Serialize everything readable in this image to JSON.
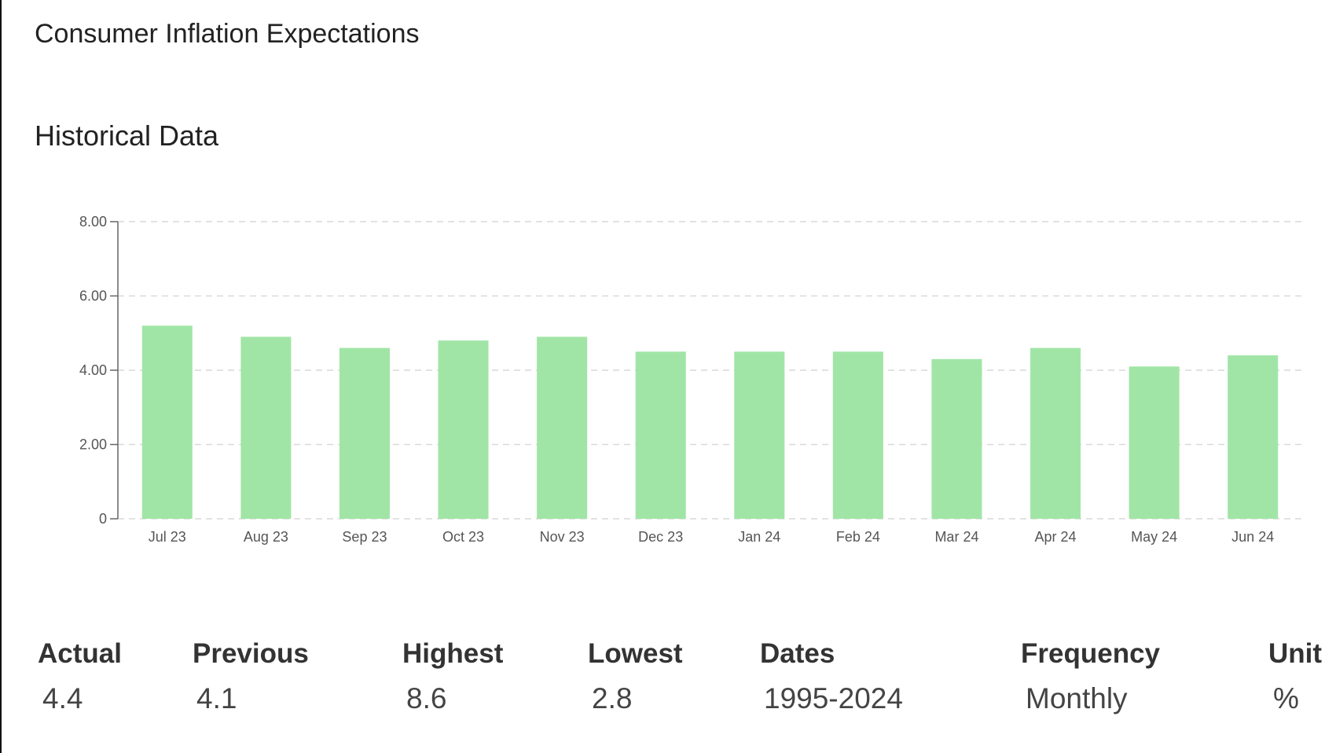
{
  "header": {
    "title": "Consumer Inflation Expectations",
    "subtitle": "Historical Data"
  },
  "colors": {
    "bar": "#a1e5a6",
    "grid": "#d9d9d9",
    "axis": "#666666"
  },
  "chart_data": {
    "type": "bar",
    "title": "",
    "xlabel": "",
    "ylabel": "",
    "categories": [
      "Jul 23",
      "Aug 23",
      "Sep 23",
      "Oct 23",
      "Nov 23",
      "Dec 23",
      "Jan 24",
      "Feb 24",
      "Mar 24",
      "Apr 24",
      "May 24",
      "Jun 24"
    ],
    "values": [
      5.2,
      4.9,
      4.6,
      4.8,
      4.9,
      4.5,
      4.5,
      4.5,
      4.3,
      4.6,
      4.1,
      4.4
    ],
    "ylim": [
      0,
      8
    ],
    "yticks": [
      0,
      2,
      4,
      6,
      8
    ],
    "ytick_labels": [
      "0",
      "2.00",
      "4.00",
      "6.00",
      "8.00"
    ],
    "grid": true,
    "legend": "none"
  },
  "stats": {
    "actual": {
      "label": "Actual",
      "value": "4.4"
    },
    "previous": {
      "label": "Previous",
      "value": "4.1"
    },
    "highest": {
      "label": "Highest",
      "value": "8.6"
    },
    "lowest": {
      "label": "Lowest",
      "value": "2.8"
    },
    "dates": {
      "label": "Dates",
      "value": "1995-2024"
    },
    "frequency": {
      "label": "Frequency",
      "value": "Monthly"
    },
    "unit": {
      "label": "Unit",
      "value": "%"
    }
  }
}
